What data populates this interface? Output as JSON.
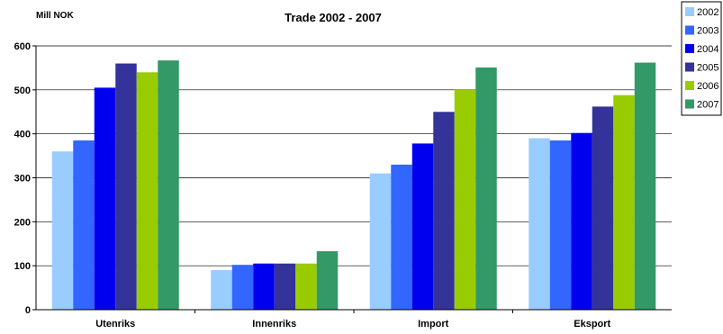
{
  "chart_data": {
    "type": "bar",
    "title": "Trade 2002 - 2007",
    "ylabel": "Mill NOK",
    "xlabel": "",
    "ylim": [
      0,
      600
    ],
    "yticks": [
      0,
      100,
      200,
      300,
      400,
      500,
      600
    ],
    "grid": true,
    "legend": "right",
    "categories": [
      "Utenriks",
      "Innenriks",
      "Import",
      "Eksport"
    ],
    "series": [
      {
        "name": "2002",
        "color": "#99ccff",
        "values": [
          360,
          90,
          310,
          390
        ]
      },
      {
        "name": "2003",
        "color": "#3366ff",
        "values": [
          385,
          102,
          330,
          385
        ]
      },
      {
        "name": "2004",
        "color": "#0000ee",
        "values": [
          505,
          105,
          378,
          402
        ]
      },
      {
        "name": "2005",
        "color": "#333399",
        "values": [
          560,
          105,
          450,
          462
        ]
      },
      {
        "name": "2006",
        "color": "#99cc00",
        "values": [
          540,
          105,
          500,
          488
        ]
      },
      {
        "name": "2007",
        "color": "#339966",
        "values": [
          567,
          133,
          551,
          562
        ]
      }
    ]
  }
}
